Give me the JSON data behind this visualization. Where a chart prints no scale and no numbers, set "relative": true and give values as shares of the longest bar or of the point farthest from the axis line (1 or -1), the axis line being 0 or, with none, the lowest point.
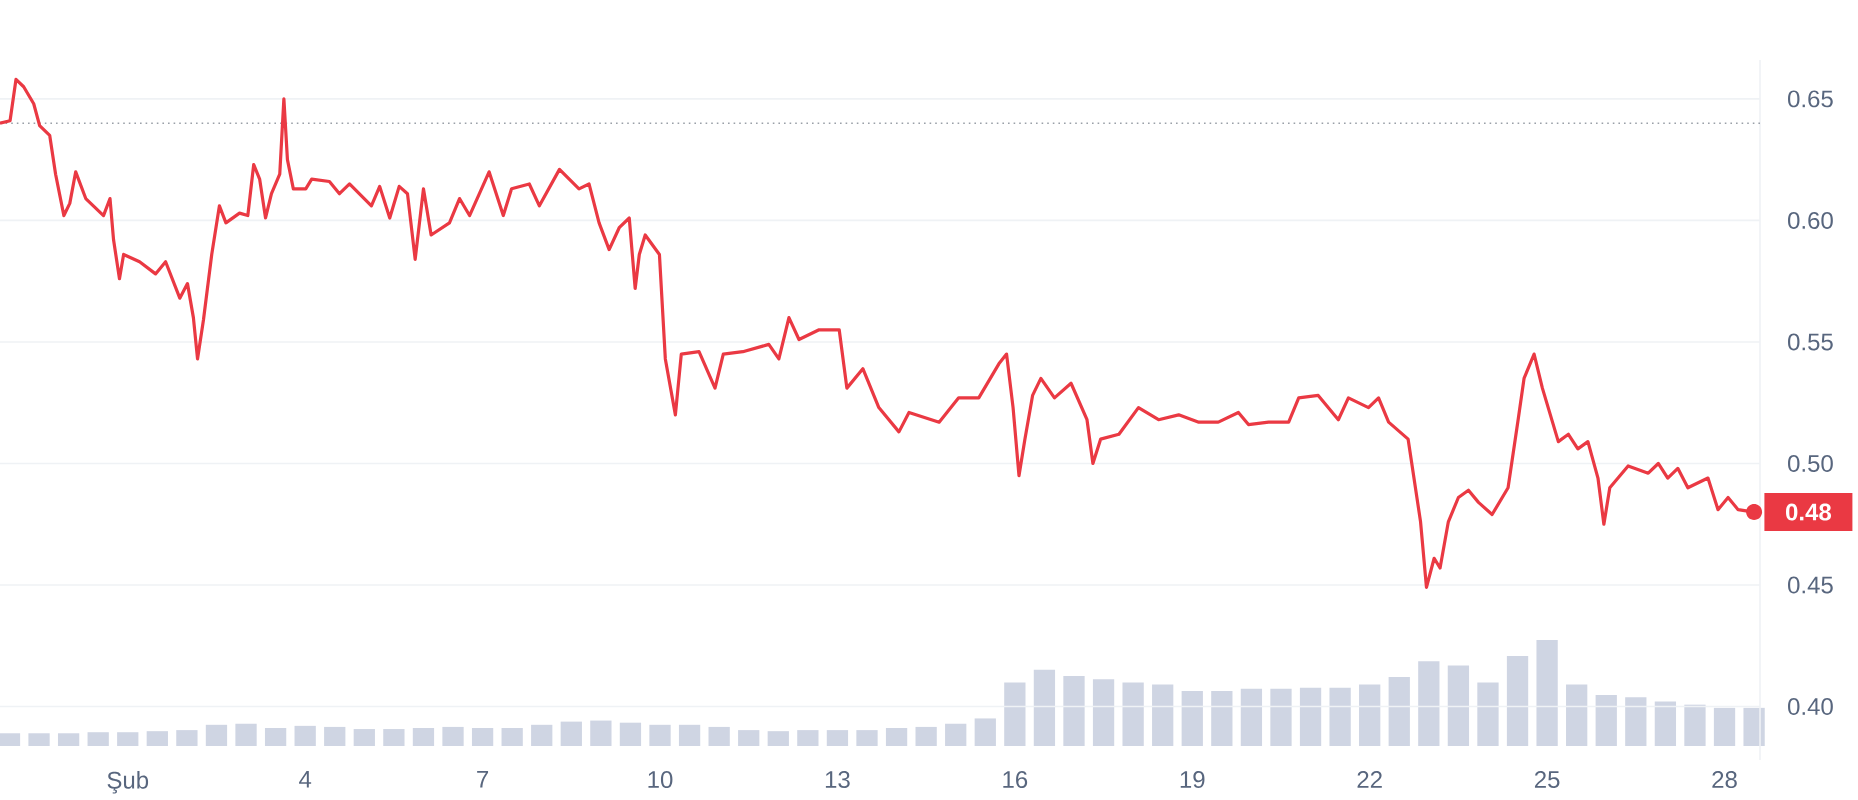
{
  "chart_data": [
    {
      "type": "line",
      "x": [
        -1.16,
        -0.99,
        -0.89,
        -0.76,
        -0.59,
        -0.49,
        -0.32,
        -0.22,
        -0.08,
        0.02,
        0.12,
        0.29,
        0.59,
        0.7,
        0.76,
        0.86,
        0.93,
        1.2,
        1.47,
        1.64,
        1.88,
        2.01,
        2.11,
        2.18,
        2.28,
        2.42,
        2.55,
        2.66,
        2.89,
        3.03,
        3.13,
        3.23,
        3.33,
        3.43,
        3.57,
        3.64,
        3.7,
        3.8,
        4.01,
        4.11,
        4.41,
        4.58,
        4.75,
        5.12,
        5.26,
        5.43,
        5.59,
        5.73,
        5.86,
        6.0,
        6.13,
        6.44,
        6.61,
        6.78,
        7.11,
        7.35,
        7.49,
        7.79,
        7.96,
        8.3,
        8.63,
        8.8,
        8.97,
        9.14,
        9.31,
        9.48,
        9.58,
        9.65,
        9.75,
        9.99,
        10.09,
        10.26,
        10.36,
        10.66,
        10.93,
        11.07,
        11.4,
        11.84,
        12.01,
        12.18,
        12.35,
        12.69,
        13.03,
        13.16,
        13.43,
        13.7,
        14.04,
        14.21,
        14.72,
        15.05,
        15.39,
        15.73,
        15.86,
        15.97,
        16.07,
        16.17,
        16.3,
        16.44,
        16.67,
        16.95,
        17.22,
        17.32,
        17.45,
        17.76,
        18.09,
        18.43,
        18.77,
        19.11,
        19.44,
        19.78,
        19.95,
        20.29,
        20.63,
        20.8,
        21.13,
        21.47,
        21.64,
        21.98,
        22.15,
        22.32,
        22.65,
        22.86,
        22.96,
        23.09,
        23.19,
        23.33,
        23.5,
        23.67,
        23.84,
        24.07,
        24.34,
        24.51,
        24.61,
        24.78,
        24.92,
        25.19,
        25.36,
        25.52,
        25.69,
        25.86,
        25.96,
        26.06,
        26.37,
        26.71,
        26.88,
        27.04,
        27.21,
        27.38,
        27.72,
        27.89,
        28.06,
        28.23,
        28.5
      ],
      "series": [
        {
          "color": "#ea3943",
          "values": [
            0.64,
            0.641,
            0.658,
            0.655,
            0.648,
            0.639,
            0.635,
            0.619,
            0.602,
            0.607,
            0.62,
            0.609,
            0.602,
            0.609,
            0.592,
            0.576,
            0.586,
            0.583,
            0.578,
            0.583,
            0.568,
            0.574,
            0.56,
            0.543,
            0.559,
            0.586,
            0.606,
            0.599,
            0.603,
            0.602,
            0.623,
            0.617,
            0.601,
            0.611,
            0.619,
            0.65,
            0.625,
            0.613,
            0.613,
            0.617,
            0.616,
            0.611,
            0.615,
            0.606,
            0.614,
            0.601,
            0.614,
            0.611,
            0.584,
            0.613,
            0.594,
            0.599,
            0.609,
            0.602,
            0.62,
            0.602,
            0.613,
            0.615,
            0.606,
            0.621,
            0.613,
            0.615,
            0.599,
            0.588,
            0.597,
            0.601,
            0.572,
            0.586,
            0.594,
            0.586,
            0.543,
            0.52,
            0.545,
            0.546,
            0.531,
            0.545,
            0.546,
            0.549,
            0.543,
            0.56,
            0.551,
            0.555,
            0.555,
            0.531,
            0.539,
            0.523,
            0.513,
            0.521,
            0.517,
            0.527,
            0.527,
            0.541,
            0.545,
            0.523,
            0.495,
            0.51,
            0.528,
            0.535,
            0.527,
            0.533,
            0.518,
            0.5,
            0.51,
            0.512,
            0.523,
            0.518,
            0.52,
            0.517,
            0.517,
            0.521,
            0.516,
            0.517,
            0.517,
            0.527,
            0.528,
            0.518,
            0.527,
            0.523,
            0.527,
            0.517,
            0.51,
            0.476,
            0.449,
            0.461,
            0.457,
            0.476,
            0.486,
            0.489,
            0.484,
            0.479,
            0.49,
            0.518,
            0.535,
            0.545,
            0.531,
            0.509,
            0.512,
            0.506,
            0.509,
            0.494,
            0.475,
            0.49,
            0.499,
            0.496,
            0.5,
            0.494,
            0.498,
            0.49,
            0.494,
            0.481,
            0.486,
            0.481,
            0.48
          ]
        }
      ],
      "xlim": [
        -1.16,
        28.6
      ],
      "xticks": [
        {
          "value": 1,
          "label": "Şub"
        },
        4,
        7,
        10,
        13,
        16,
        19,
        22,
        25,
        28
      ],
      "ylim": [
        0.378,
        0.666
      ],
      "yticks": [
        {
          "value": 0.4,
          "label": "0.40"
        },
        {
          "value": 0.45,
          "label": "0.45"
        },
        {
          "value": 0.5,
          "label": "0.50"
        },
        {
          "value": 0.55,
          "label": "0.55"
        },
        {
          "value": 0.6,
          "label": "0.60"
        },
        {
          "value": 0.65,
          "label": "0.65"
        }
      ],
      "grid": "y",
      "ref_lines": [
        {
          "axis": "y",
          "value": 0.64,
          "line_style": "dotted",
          "color": "#9aa0a8"
        }
      ],
      "annotations": [
        {
          "text": "0.48",
          "x": 28.5,
          "y": 0.48
        }
      ]
    },
    {
      "type": "bar",
      "relative": true,
      "color": "#cfd5e3",
      "xlim": [
        -1.16,
        28.6
      ],
      "x": [
        -1,
        -0.5,
        0,
        0.5,
        1,
        1.5,
        2,
        2.5,
        3,
        3.5,
        4,
        4.5,
        5,
        5.5,
        6,
        6.5,
        7,
        7.5,
        8,
        8.5,
        9,
        9.5,
        10,
        10.5,
        11,
        11.5,
        12,
        12.5,
        13,
        13.5,
        14,
        14.5,
        15,
        15.5,
        16,
        16.5,
        17,
        17.5,
        18,
        18.5,
        19,
        19.5,
        20,
        20.5,
        21,
        21.5,
        22,
        22.5,
        23,
        23.5,
        24,
        24.5,
        25,
        25.5,
        26,
        26.5,
        27,
        27.5,
        28,
        28.5
      ],
      "values": [
        0.12,
        0.12,
        0.12,
        0.13,
        0.13,
        0.14,
        0.15,
        0.2,
        0.21,
        0.17,
        0.19,
        0.18,
        0.16,
        0.16,
        0.17,
        0.18,
        0.17,
        0.17,
        0.2,
        0.23,
        0.24,
        0.22,
        0.2,
        0.2,
        0.18,
        0.15,
        0.14,
        0.15,
        0.15,
        0.15,
        0.17,
        0.18,
        0.21,
        0.26,
        0.6,
        0.72,
        0.66,
        0.63,
        0.6,
        0.58,
        0.52,
        0.52,
        0.54,
        0.54,
        0.55,
        0.55,
        0.58,
        0.65,
        0.8,
        0.76,
        0.6,
        0.85,
        1.0,
        0.58,
        0.48,
        0.46,
        0.42,
        0.39,
        0.36,
        0.36
      ]
    }
  ]
}
